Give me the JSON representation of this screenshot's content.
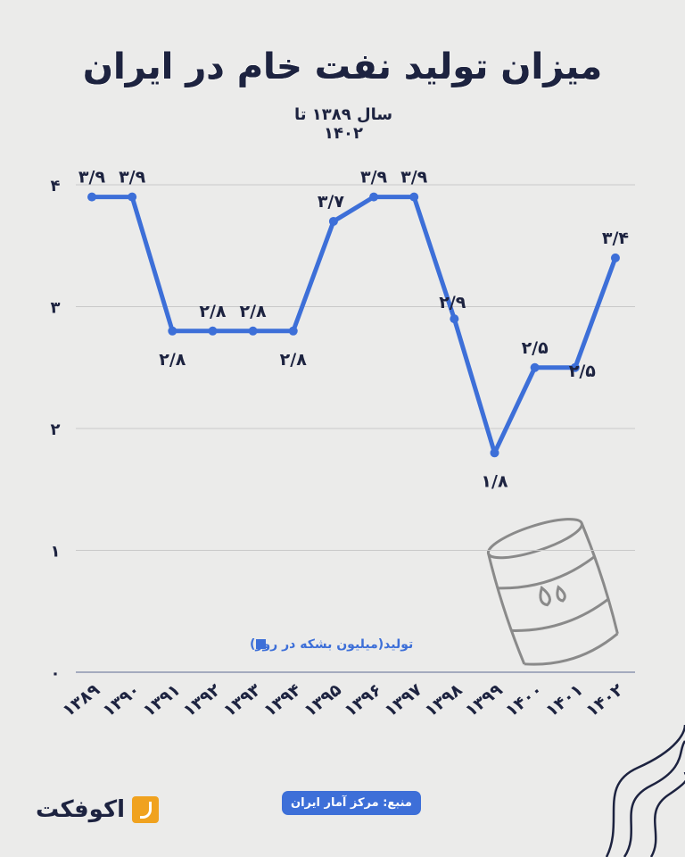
{
  "title": "میزان تولید نفت خام در ایران",
  "subtitle": "سال ۱۳۸۹ تا ۱۴۰۲",
  "source": "منبع: مرکز آمار ایران",
  "logo": "اکوفکت",
  "colors": {
    "line": "#3d6fd8",
    "title": "#1d2340",
    "logo_accent": "#f0a21f",
    "background": "#ebebea"
  },
  "chart_data": {
    "type": "line",
    "title": "میزان تولید نفت خام در ایران",
    "subtitle": "سال ۱۳۸۹ تا ۱۴۰۲",
    "categories": [
      "۱۳۸۹",
      "۱۳۹۰",
      "۱۳۹۱",
      "۱۳۹۲",
      "۱۳۹۳",
      "۱۳۹۴",
      "۱۳۹۵",
      "۱۳۹۶",
      "۱۳۹۷",
      "۱۳۹۸",
      "۱۳۹۹",
      "۱۴۰۰",
      "۱۴۰۱",
      "۱۴۰۲"
    ],
    "series": [
      {
        "name": "تولید(میلیون بشکه در روز)",
        "values": [
          3.9,
          3.9,
          2.8,
          2.8,
          2.8,
          2.8,
          3.7,
          3.9,
          3.9,
          2.9,
          1.8,
          2.5,
          2.5,
          3.4
        ],
        "labels": [
          "۳/۹",
          "۳/۹",
          "۲/۸",
          "۲/۸",
          "۲/۸",
          "۲/۸",
          "۳/۷",
          "۳/۹",
          "۳/۹",
          "۲/۹",
          "۱/۸",
          "۲/۵",
          "۲/۵",
          "۳/۴"
        ]
      }
    ],
    "yticks": [
      0,
      1,
      2,
      3,
      4
    ],
    "ytick_labels": [
      "۰",
      "۱",
      "۲",
      "۳",
      "۴"
    ],
    "ylim": [
      0,
      4
    ],
    "grid": true,
    "legend_placement": "bottom-left"
  }
}
